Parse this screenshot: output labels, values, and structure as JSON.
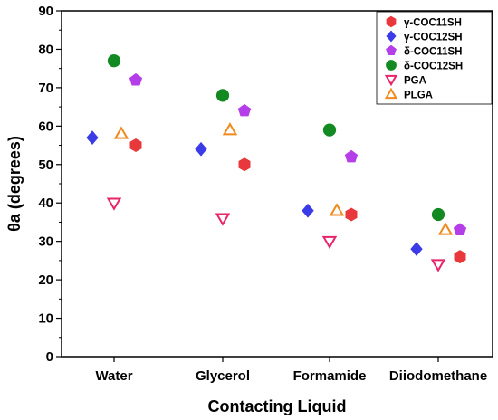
{
  "chart_data": {
    "type": "scatter",
    "title": "",
    "xlabel": "Contacting Liquid",
    "ylabel": "θa (degrees)",
    "ylim": [
      0,
      90
    ],
    "yticks": [
      0,
      10,
      20,
      30,
      40,
      50,
      60,
      70,
      80,
      90
    ],
    "grid": false,
    "legend_position": "top-right",
    "categories": [
      "Water",
      "Glycerol",
      "Formamide",
      "Diiodomethane"
    ],
    "series": [
      {
        "name": "γ-COC11SH",
        "marker": "hexagon",
        "color": "#e8383c",
        "filled": true,
        "values": [
          55,
          50,
          37,
          26
        ]
      },
      {
        "name": "γ-COC12SH",
        "marker": "diamond",
        "color": "#3b3be8",
        "filled": true,
        "values": [
          57,
          54,
          38,
          28
        ]
      },
      {
        "name": "δ-COC11SH",
        "marker": "pentagon",
        "color": "#b43ee8",
        "filled": true,
        "values": [
          72,
          64,
          52,
          33
        ]
      },
      {
        "name": "δ-COC12SH",
        "marker": "circle",
        "color": "#138a21",
        "filled": true,
        "values": [
          77,
          68,
          59,
          37
        ]
      },
      {
        "name": "PGA",
        "marker": "triangle-down",
        "color": "#e8246a",
        "filled": false,
        "values": [
          40,
          36,
          30,
          24
        ]
      },
      {
        "name": "PLGA",
        "marker": "triangle-up",
        "color": "#f08a1c",
        "filled": false,
        "values": [
          58,
          59,
          38,
          33
        ]
      }
    ]
  }
}
